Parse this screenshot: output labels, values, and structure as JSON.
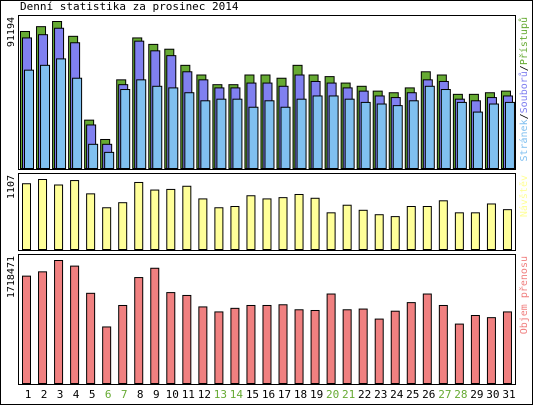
{
  "title": "Denní statistika za prosinec 2014",
  "colors": {
    "background": "#ffffff",
    "frame": "#000000",
    "pristupu": "#66aa33",
    "souboru": "#8080f0",
    "stranek": "#80c0f0",
    "navstev": "#ffff99",
    "objem": "#f08080",
    "weekend_label": "#66aa33"
  },
  "chart_data": [
    {
      "type": "bar",
      "panel": "traffic",
      "ymax": 91194,
      "ymax_label": "91194",
      "legend": [
        {
          "text": "Stránek",
          "color": "#80c0f0"
        },
        {
          "text": "/",
          "color": "#000000"
        },
        {
          "text": "Souborů",
          "color": "#8080f0"
        },
        {
          "text": "/",
          "color": "#000000"
        },
        {
          "text": "Přístupů",
          "color": "#66aa33"
        }
      ],
      "series": [
        {
          "name": "Přístupů",
          "values": [
            85000,
            88000,
            91194,
            82000,
            30000,
            18000,
            55000,
            81000,
            77000,
            74000,
            64000,
            58000,
            52000,
            52000,
            58000,
            58000,
            56000,
            64000,
            58000,
            57000,
            53000,
            51000,
            48000,
            47000,
            50000,
            60000,
            58000,
            46000,
            46000,
            47000,
            48000
          ]
        },
        {
          "name": "Souborů",
          "values": [
            81000,
            83000,
            87000,
            78000,
            27000,
            15000,
            52000,
            79000,
            73000,
            70000,
            60000,
            55000,
            50000,
            50000,
            53000,
            53000,
            51000,
            58000,
            54000,
            53000,
            50000,
            48000,
            45000,
            44000,
            47000,
            55000,
            54000,
            43000,
            42000,
            44000,
            45000
          ]
        },
        {
          "name": "Stránek",
          "values": [
            61000,
            64000,
            68000,
            56000,
            15000,
            10000,
            49000,
            55000,
            51000,
            50000,
            47000,
            42000,
            43000,
            43000,
            38000,
            42000,
            38000,
            43000,
            45000,
            45000,
            43000,
            41000,
            40000,
            39000,
            42000,
            51000,
            49000,
            41000,
            35000,
            40000,
            41000
          ]
        }
      ]
    },
    {
      "type": "bar",
      "panel": "visits",
      "ymax": 1107,
      "ymax_label": "1107",
      "legend": [
        {
          "text": "Návštěv",
          "color": "#ffff99"
        }
      ],
      "series": [
        {
          "name": "Návštěv",
          "values": [
            1040,
            1107,
            1020,
            1090,
            880,
            660,
            740,
            1060,
            940,
            950,
            1000,
            800,
            660,
            680,
            850,
            800,
            820,
            870,
            810,
            580,
            700,
            620,
            550,
            520,
            680,
            680,
            770,
            580,
            580,
            720,
            630
          ]
        }
      ]
    },
    {
      "type": "bar",
      "panel": "volume",
      "ymax": 1718471,
      "ymax_label": "1718471",
      "legend": [
        {
          "text": "Objem přenosu",
          "color": "#f08080"
        }
      ],
      "series": [
        {
          "name": "Objem přenosu",
          "values": [
            1500000,
            1560000,
            1718471,
            1640000,
            1260000,
            790000,
            1090000,
            1480000,
            1610000,
            1270000,
            1230000,
            1070000,
            1000000,
            1050000,
            1090000,
            1090000,
            1100000,
            1030000,
            1020000,
            1250000,
            1030000,
            1040000,
            900000,
            1010000,
            1130000,
            1250000,
            1090000,
            830000,
            950000,
            920000,
            1000000
          ]
        }
      ]
    }
  ],
  "days": [
    "1",
    "2",
    "3",
    "4",
    "5",
    "6",
    "7",
    "8",
    "9",
    "10",
    "11",
    "12",
    "13",
    "14",
    "15",
    "16",
    "17",
    "18",
    "19",
    "20",
    "21",
    "22",
    "23",
    "24",
    "25",
    "26",
    "27",
    "28",
    "29",
    "30",
    "31"
  ],
  "weekend_days": [
    "6",
    "7",
    "13",
    "14",
    "20",
    "21",
    "27",
    "28"
  ]
}
